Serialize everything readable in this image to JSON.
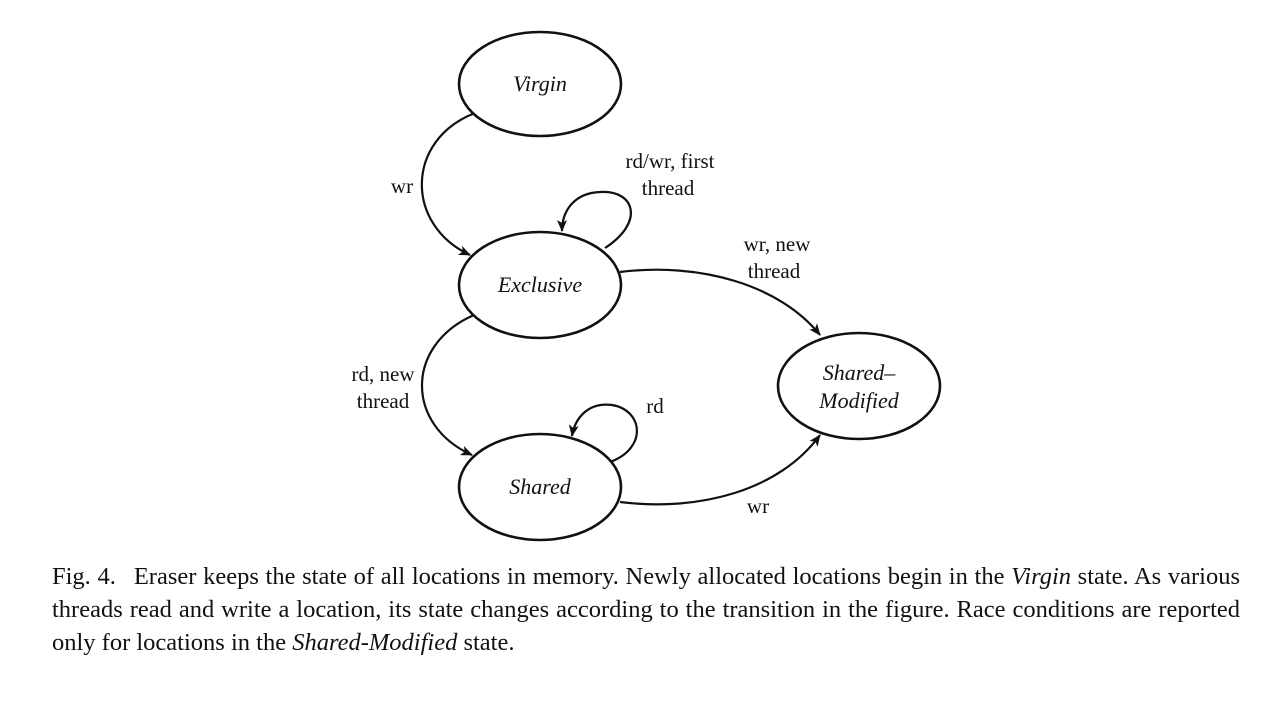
{
  "diagram": {
    "states": {
      "virgin": "Virgin",
      "exclusive": "Exclusive",
      "shared": "Shared",
      "shared_modified_line1": "Shared–",
      "shared_modified_line2": "Modified"
    },
    "transitions": {
      "virgin_to_exclusive": "wr",
      "exclusive_self_line1": "rd/wr, first",
      "exclusive_self_line2": "thread",
      "exclusive_to_shared_modified_line1": "wr, new",
      "exclusive_to_shared_modified_line2": "thread",
      "exclusive_to_shared_line1": "rd, new",
      "exclusive_to_shared_line2": "thread",
      "shared_self": "rd",
      "shared_to_shared_modified": "wr"
    }
  },
  "caption": {
    "figure_number": "Fig. 4.",
    "part1": "Eraser keeps the state of all locations in memory. Newly allocated locations begin in the ",
    "virgin_term": "Virgin",
    "part2": " state. As various threads read and write a location, its state changes according to the transition in the figure. Race conditions are reported only for locations in the ",
    "shared_modified_term": "Shared-Modified",
    "part3": " state."
  }
}
